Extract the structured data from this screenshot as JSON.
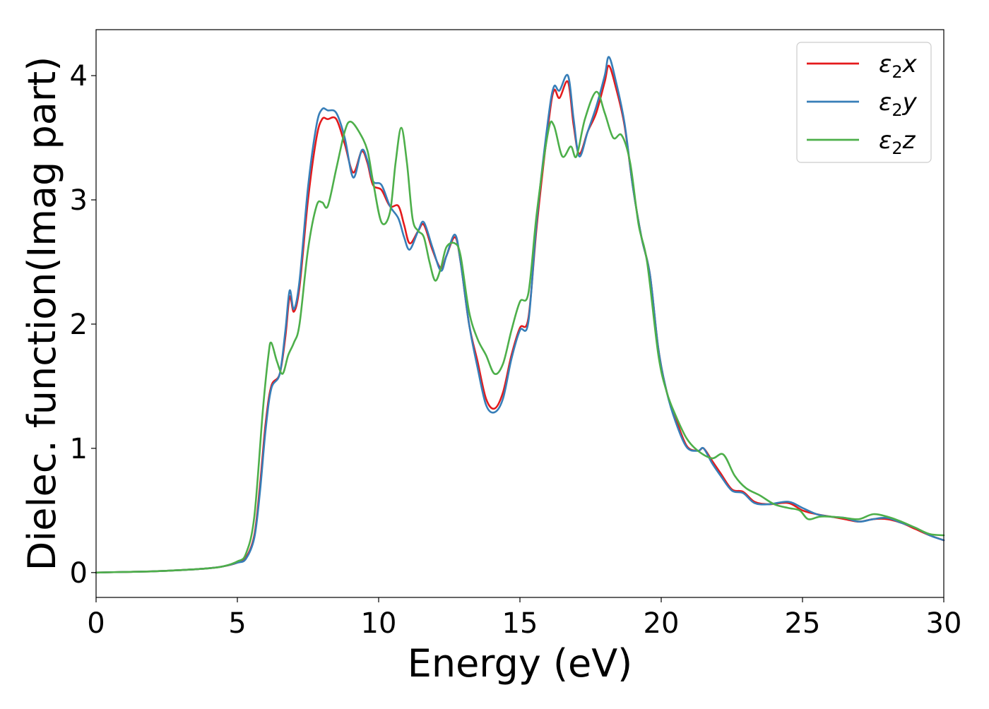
{
  "chart_data": {
    "type": "line",
    "title": "",
    "xlabel": "Energy (eV)",
    "ylabel": "Dielec. function(Imag part)",
    "xlim": [
      0,
      30
    ],
    "ylim": [
      -0.2,
      4.37
    ],
    "xticks": [
      0,
      5,
      10,
      15,
      20,
      25,
      30
    ],
    "xtick_labels": [
      "0",
      "5",
      "10",
      "15",
      "20",
      "25",
      "30"
    ],
    "yticks": [
      0,
      1,
      2,
      3,
      4
    ],
    "ytick_labels": [
      "0",
      "1",
      "2",
      "3",
      "4"
    ],
    "grid": false,
    "legend_position": "top-right",
    "series": [
      {
        "name": "ε₂x",
        "legend_base": "ε",
        "legend_sub": "2",
        "legend_suffix": "x",
        "color": "#e41a1c",
        "points": [
          [
            0,
            0
          ],
          [
            1,
            0.005
          ],
          [
            2,
            0.01
          ],
          [
            3,
            0.02
          ],
          [
            4,
            0.035
          ],
          [
            4.5,
            0.05
          ],
          [
            5,
            0.08
          ],
          [
            5.3,
            0.12
          ],
          [
            5.6,
            0.3
          ],
          [
            5.8,
            0.7
          ],
          [
            6,
            1.2
          ],
          [
            6.2,
            1.5
          ],
          [
            6.5,
            1.6
          ],
          [
            6.7,
            1.9
          ],
          [
            6.85,
            2.22
          ],
          [
            7,
            2.1
          ],
          [
            7.2,
            2.3
          ],
          [
            7.5,
            3.0
          ],
          [
            7.8,
            3.5
          ],
          [
            8.0,
            3.65
          ],
          [
            8.2,
            3.65
          ],
          [
            8.5,
            3.65
          ],
          [
            8.8,
            3.45
          ],
          [
            9.1,
            3.22
          ],
          [
            9.4,
            3.39
          ],
          [
            9.6,
            3.3
          ],
          [
            9.8,
            3.12
          ],
          [
            10.1,
            3.08
          ],
          [
            10.4,
            2.95
          ],
          [
            10.7,
            2.95
          ],
          [
            10.9,
            2.8
          ],
          [
            11.1,
            2.65
          ],
          [
            11.4,
            2.75
          ],
          [
            11.6,
            2.8
          ],
          [
            11.9,
            2.6
          ],
          [
            12.2,
            2.45
          ],
          [
            12.4,
            2.55
          ],
          [
            12.7,
            2.7
          ],
          [
            12.9,
            2.5
          ],
          [
            13.2,
            2.0
          ],
          [
            13.5,
            1.7
          ],
          [
            13.8,
            1.4
          ],
          [
            14.1,
            1.32
          ],
          [
            14.4,
            1.45
          ],
          [
            14.7,
            1.75
          ],
          [
            15.0,
            1.97
          ],
          [
            15.3,
            2.05
          ],
          [
            15.6,
            2.8
          ],
          [
            16.0,
            3.6
          ],
          [
            16.2,
            3.88
          ],
          [
            16.4,
            3.82
          ],
          [
            16.7,
            3.95
          ],
          [
            16.9,
            3.6
          ],
          [
            17.1,
            3.37
          ],
          [
            17.4,
            3.55
          ],
          [
            17.7,
            3.7
          ],
          [
            18.0,
            3.95
          ],
          [
            18.15,
            4.08
          ],
          [
            18.4,
            3.9
          ],
          [
            18.7,
            3.6
          ],
          [
            19.0,
            3.1
          ],
          [
            19.3,
            2.7
          ],
          [
            19.6,
            2.4
          ],
          [
            19.9,
            1.8
          ],
          [
            20.2,
            1.45
          ],
          [
            20.5,
            1.25
          ],
          [
            20.9,
            1.02
          ],
          [
            21.3,
            0.98
          ],
          [
            21.5,
            1.0
          ],
          [
            21.8,
            0.9
          ],
          [
            22.1,
            0.8
          ],
          [
            22.5,
            0.67
          ],
          [
            22.9,
            0.65
          ],
          [
            23.3,
            0.57
          ],
          [
            23.8,
            0.55
          ],
          [
            24.5,
            0.56
          ],
          [
            25.0,
            0.5
          ],
          [
            25.5,
            0.47
          ],
          [
            26.0,
            0.45
          ],
          [
            26.5,
            0.43
          ],
          [
            27.0,
            0.41
          ],
          [
            27.5,
            0.43
          ],
          [
            28.0,
            0.43
          ],
          [
            28.5,
            0.4
          ],
          [
            29.0,
            0.35
          ],
          [
            29.5,
            0.3
          ],
          [
            30.0,
            0.26
          ]
        ]
      },
      {
        "name": "ε₂y",
        "legend_base": "ε",
        "legend_sub": "2",
        "legend_suffix": "y",
        "color": "#377eb8",
        "points": [
          [
            0,
            0
          ],
          [
            1,
            0.005
          ],
          [
            2,
            0.01
          ],
          [
            3,
            0.02
          ],
          [
            4,
            0.035
          ],
          [
            4.5,
            0.05
          ],
          [
            5,
            0.08
          ],
          [
            5.3,
            0.11
          ],
          [
            5.6,
            0.28
          ],
          [
            5.8,
            0.65
          ],
          [
            6,
            1.15
          ],
          [
            6.2,
            1.48
          ],
          [
            6.5,
            1.6
          ],
          [
            6.7,
            1.95
          ],
          [
            6.85,
            2.27
          ],
          [
            7,
            2.12
          ],
          [
            7.2,
            2.35
          ],
          [
            7.5,
            3.1
          ],
          [
            7.8,
            3.6
          ],
          [
            8.0,
            3.73
          ],
          [
            8.2,
            3.72
          ],
          [
            8.5,
            3.7
          ],
          [
            8.8,
            3.5
          ],
          [
            9.1,
            3.18
          ],
          [
            9.4,
            3.4
          ],
          [
            9.6,
            3.32
          ],
          [
            9.8,
            3.15
          ],
          [
            10.1,
            3.12
          ],
          [
            10.4,
            2.95
          ],
          [
            10.7,
            2.85
          ],
          [
            10.9,
            2.7
          ],
          [
            11.1,
            2.6
          ],
          [
            11.4,
            2.75
          ],
          [
            11.6,
            2.82
          ],
          [
            11.9,
            2.62
          ],
          [
            12.2,
            2.43
          ],
          [
            12.4,
            2.55
          ],
          [
            12.7,
            2.72
          ],
          [
            12.9,
            2.5
          ],
          [
            13.2,
            2.0
          ],
          [
            13.5,
            1.65
          ],
          [
            13.8,
            1.35
          ],
          [
            14.1,
            1.29
          ],
          [
            14.4,
            1.4
          ],
          [
            14.7,
            1.72
          ],
          [
            15.0,
            1.95
          ],
          [
            15.3,
            2.02
          ],
          [
            15.6,
            2.85
          ],
          [
            16.0,
            3.65
          ],
          [
            16.2,
            3.91
          ],
          [
            16.4,
            3.88
          ],
          [
            16.7,
            4.0
          ],
          [
            16.9,
            3.65
          ],
          [
            17.1,
            3.35
          ],
          [
            17.4,
            3.55
          ],
          [
            17.7,
            3.75
          ],
          [
            18.0,
            4.0
          ],
          [
            18.15,
            4.15
          ],
          [
            18.4,
            3.95
          ],
          [
            18.7,
            3.62
          ],
          [
            19.0,
            3.1
          ],
          [
            19.3,
            2.7
          ],
          [
            19.6,
            2.4
          ],
          [
            19.9,
            1.8
          ],
          [
            20.2,
            1.45
          ],
          [
            20.5,
            1.22
          ],
          [
            20.9,
            1.01
          ],
          [
            21.3,
            0.98
          ],
          [
            21.5,
            1.0
          ],
          [
            21.8,
            0.88
          ],
          [
            22.1,
            0.78
          ],
          [
            22.5,
            0.66
          ],
          [
            22.9,
            0.64
          ],
          [
            23.3,
            0.56
          ],
          [
            23.8,
            0.55
          ],
          [
            24.5,
            0.57
          ],
          [
            25.0,
            0.52
          ],
          [
            25.5,
            0.47
          ],
          [
            26.0,
            0.45
          ],
          [
            26.5,
            0.44
          ],
          [
            27.0,
            0.41
          ],
          [
            27.5,
            0.43
          ],
          [
            28.0,
            0.44
          ],
          [
            28.5,
            0.4
          ],
          [
            29.0,
            0.36
          ],
          [
            29.5,
            0.3
          ],
          [
            30.0,
            0.26
          ]
        ]
      },
      {
        "name": "ε₂z",
        "legend_base": "ε",
        "legend_sub": "2",
        "legend_suffix": "z",
        "color": "#4daf4a",
        "points": [
          [
            0,
            0
          ],
          [
            1,
            0.005
          ],
          [
            2,
            0.01
          ],
          [
            3,
            0.02
          ],
          [
            4,
            0.035
          ],
          [
            4.5,
            0.05
          ],
          [
            5,
            0.09
          ],
          [
            5.3,
            0.15
          ],
          [
            5.6,
            0.45
          ],
          [
            5.9,
            1.3
          ],
          [
            6.1,
            1.75
          ],
          [
            6.2,
            1.85
          ],
          [
            6.4,
            1.7
          ],
          [
            6.6,
            1.6
          ],
          [
            6.8,
            1.75
          ],
          [
            7.0,
            1.85
          ],
          [
            7.2,
            2.0
          ],
          [
            7.5,
            2.6
          ],
          [
            7.8,
            2.95
          ],
          [
            8.0,
            2.98
          ],
          [
            8.2,
            2.95
          ],
          [
            8.5,
            3.25
          ],
          [
            8.8,
            3.55
          ],
          [
            9.0,
            3.63
          ],
          [
            9.3,
            3.55
          ],
          [
            9.6,
            3.4
          ],
          [
            9.8,
            3.15
          ],
          [
            10.1,
            2.82
          ],
          [
            10.4,
            2.9
          ],
          [
            10.6,
            3.3
          ],
          [
            10.8,
            3.58
          ],
          [
            11.0,
            3.3
          ],
          [
            11.2,
            2.85
          ],
          [
            11.4,
            2.75
          ],
          [
            11.6,
            2.7
          ],
          [
            11.8,
            2.5
          ],
          [
            12.0,
            2.35
          ],
          [
            12.2,
            2.45
          ],
          [
            12.4,
            2.62
          ],
          [
            12.7,
            2.65
          ],
          [
            12.9,
            2.55
          ],
          [
            13.2,
            2.1
          ],
          [
            13.5,
            1.88
          ],
          [
            13.8,
            1.75
          ],
          [
            14.1,
            1.6
          ],
          [
            14.4,
            1.68
          ],
          [
            14.7,
            1.95
          ],
          [
            15.0,
            2.18
          ],
          [
            15.3,
            2.25
          ],
          [
            15.6,
            2.9
          ],
          [
            16.0,
            3.55
          ],
          [
            16.2,
            3.6
          ],
          [
            16.5,
            3.35
          ],
          [
            16.8,
            3.43
          ],
          [
            17.0,
            3.35
          ],
          [
            17.3,
            3.65
          ],
          [
            17.7,
            3.87
          ],
          [
            18.0,
            3.7
          ],
          [
            18.3,
            3.5
          ],
          [
            18.6,
            3.52
          ],
          [
            18.9,
            3.3
          ],
          [
            19.2,
            2.8
          ],
          [
            19.5,
            2.5
          ],
          [
            19.9,
            1.75
          ],
          [
            20.2,
            1.45
          ],
          [
            20.5,
            1.27
          ],
          [
            20.9,
            1.08
          ],
          [
            21.3,
            0.98
          ],
          [
            21.8,
            0.92
          ],
          [
            22.2,
            0.95
          ],
          [
            22.6,
            0.78
          ],
          [
            23.0,
            0.68
          ],
          [
            23.5,
            0.62
          ],
          [
            24.0,
            0.55
          ],
          [
            24.5,
            0.52
          ],
          [
            24.9,
            0.5
          ],
          [
            25.2,
            0.43
          ],
          [
            25.6,
            0.45
          ],
          [
            26.0,
            0.45
          ],
          [
            26.5,
            0.44
          ],
          [
            27.0,
            0.43
          ],
          [
            27.5,
            0.47
          ],
          [
            28.0,
            0.45
          ],
          [
            28.5,
            0.41
          ],
          [
            29.0,
            0.36
          ],
          [
            29.5,
            0.31
          ],
          [
            30.0,
            0.3
          ]
        ]
      }
    ]
  }
}
